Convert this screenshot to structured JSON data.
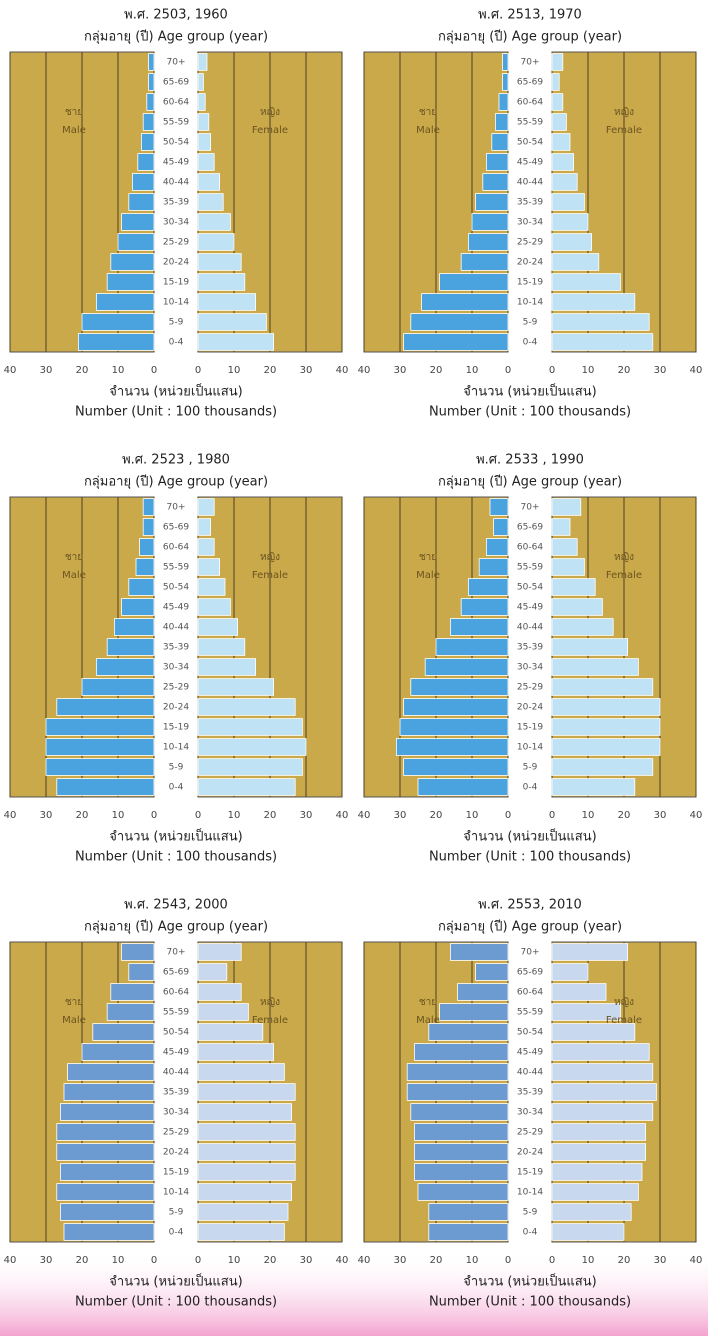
{
  "chart_data": [
    {
      "type": "pyramid",
      "title": "พ.ศ. 2503, 1960",
      "subtitle": "กลุ่มอายุ (ปี) Age group (year)",
      "x_label": "จำนวน (หน่วยเป็นแสน)",
      "x_label_en": "Number (Unit : 100 thousands)",
      "categories": [
        "0-4",
        "5-9",
        "10-14",
        "15-19",
        "20-24",
        "25-29",
        "30-34",
        "35-39",
        "40-44",
        "45-49",
        "50-54",
        "55-59",
        "60-64",
        "65-69",
        "70+"
      ],
      "xlim": [
        0,
        40
      ],
      "xticks": [
        0,
        10,
        20,
        30,
        40
      ],
      "grid": true,
      "series": [
        {
          "name": "Male",
          "name_th": "ชาย",
          "color": "#4aa3df",
          "values": [
            21,
            20,
            16,
            13,
            12,
            10,
            9,
            7,
            6,
            4.5,
            3.5,
            3,
            2,
            1.5,
            1.5
          ]
        },
        {
          "name": "Female",
          "name_th": "หญิง",
          "color": "#bfe3f5",
          "values": [
            21,
            19,
            16,
            13,
            12,
            10,
            9,
            7,
            6,
            4.5,
            3.5,
            3,
            2,
            1.5,
            2.5
          ]
        }
      ]
    },
    {
      "type": "pyramid",
      "title": "พ.ศ. 2513, 1970",
      "subtitle": "กลุ่มอายุ (ปี) Age group (year)",
      "x_label": "จำนวน (หน่วยเป็นแสน)",
      "x_label_en": "Number (Unit : 100 thousands)",
      "categories": [
        "0-4",
        "5-9",
        "10-14",
        "15-19",
        "20-24",
        "25-29",
        "30-34",
        "35-39",
        "40-44",
        "45-49",
        "50-54",
        "55-59",
        "60-64",
        "65-69",
        "70+"
      ],
      "xlim": [
        0,
        40
      ],
      "xticks": [
        0,
        10,
        20,
        30,
        40
      ],
      "grid": true,
      "series": [
        {
          "name": "Male",
          "name_th": "ชาย",
          "color": "#4aa3df",
          "values": [
            29,
            27,
            24,
            19,
            13,
            11,
            10,
            9,
            7,
            6,
            4.5,
            3.5,
            2.5,
            1.5,
            1.5
          ]
        },
        {
          "name": "Female",
          "name_th": "หญิง",
          "color": "#bfe3f5",
          "values": [
            28,
            27,
            23,
            19,
            13,
            11,
            10,
            9,
            7,
            6,
            5,
            4,
            3,
            2,
            3
          ]
        }
      ]
    },
    {
      "type": "pyramid",
      "title": "พ.ศ. 2523 , 1980",
      "subtitle": "กลุ่มอายุ (ปี) Age group (year)",
      "x_label": "จำนวน (หน่วยเป็นแสน)",
      "x_label_en": "Number (Unit : 100 thousands)",
      "categories": [
        "0-4",
        "5-9",
        "10-14",
        "15-19",
        "20-24",
        "25-29",
        "30-34",
        "35-39",
        "40-44",
        "45-49",
        "50-54",
        "55-59",
        "60-64",
        "65-69",
        "70+"
      ],
      "xlim": [
        0,
        40
      ],
      "xticks": [
        0,
        10,
        20,
        30,
        40
      ],
      "grid": true,
      "series": [
        {
          "name": "Male",
          "name_th": "ชาย",
          "color": "#4aa3df",
          "values": [
            27,
            30,
            30,
            30,
            27,
            20,
            16,
            13,
            11,
            9,
            7,
            5,
            4,
            3,
            3
          ]
        },
        {
          "name": "Female",
          "name_th": "หญิง",
          "color": "#bfe3f5",
          "values": [
            27,
            29,
            30,
            29,
            27,
            21,
            16,
            13,
            11,
            9,
            7.5,
            6,
            4.5,
            3.5,
            4.5
          ]
        }
      ]
    },
    {
      "type": "pyramid",
      "title": "พ.ศ. 2533 , 1990",
      "subtitle": "กลุ่มอายุ (ปี) Age group (year)",
      "x_label": "จำนวน (หน่วยเป็นแสน)",
      "x_label_en": "Number (Unit : 100 thousands)",
      "categories": [
        "0-4",
        "5-9",
        "10-14",
        "15-19",
        "20-24",
        "25-29",
        "30-34",
        "35-39",
        "40-44",
        "45-49",
        "50-54",
        "55-59",
        "60-64",
        "65-69",
        "70+"
      ],
      "xlim": [
        0,
        40
      ],
      "xticks": [
        0,
        10,
        20,
        30,
        40
      ],
      "grid": true,
      "series": [
        {
          "name": "Male",
          "name_th": "ชาย",
          "color": "#4aa3df",
          "values": [
            25,
            29,
            31,
            30,
            29,
            27,
            23,
            20,
            16,
            13,
            11,
            8,
            6,
            4,
            5
          ]
        },
        {
          "name": "Female",
          "name_th": "หญิง",
          "color": "#bfe3f5",
          "values": [
            23,
            28,
            30,
            30,
            30,
            28,
            24,
            21,
            17,
            14,
            12,
            9,
            7,
            5,
            8
          ]
        }
      ]
    },
    {
      "type": "pyramid",
      "title": "พ.ศ. 2543, 2000",
      "subtitle": "กลุ่มอายุ (ปี) Age group (year)",
      "x_label": "จำนวน (หน่วยเป็นแสน)",
      "x_label_en": "Number (Unit : 100 thousands)",
      "categories": [
        "0-4",
        "5-9",
        "10-14",
        "15-19",
        "20-24",
        "25-29",
        "30-34",
        "35-39",
        "40-44",
        "45-49",
        "50-54",
        "55-59",
        "60-64",
        "65-69",
        "70+"
      ],
      "xlim": [
        0,
        40
      ],
      "xticks": [
        0,
        10,
        20,
        30,
        40
      ],
      "grid": true,
      "series": [
        {
          "name": "Male",
          "name_th": "ชาย",
          "color": "#6b9bd1",
          "values": [
            25,
            26,
            27,
            26,
            27,
            27,
            26,
            25,
            24,
            20,
            17,
            13,
            12,
            7,
            9
          ]
        },
        {
          "name": "Female",
          "name_th": "หญิง",
          "color": "#c8d8ee",
          "values": [
            24,
            25,
            26,
            27,
            27,
            27,
            26,
            27,
            24,
            21,
            18,
            14,
            12,
            8,
            12
          ]
        }
      ]
    },
    {
      "type": "pyramid",
      "title": "พ.ศ. 2553, 2010",
      "subtitle": "กลุ่มอายุ (ปี) Age group (year)",
      "x_label": "จำนวน (หน่วยเป็นแสน)",
      "x_label_en": "Number (Unit : 100 thousands)",
      "categories": [
        "0-4",
        "5-9",
        "10-14",
        "15-19",
        "20-24",
        "25-29",
        "30-34",
        "35-39",
        "40-44",
        "45-49",
        "50-54",
        "55-59",
        "60-64",
        "65-69",
        "70+"
      ],
      "xlim": [
        0,
        40
      ],
      "xticks": [
        0,
        10,
        20,
        30,
        40
      ],
      "grid": true,
      "series": [
        {
          "name": "Male",
          "name_th": "ชาย",
          "color": "#6b9bd1",
          "values": [
            22,
            22,
            25,
            26,
            26,
            26,
            27,
            28,
            28,
            26,
            22,
            19,
            14,
            9,
            16
          ]
        },
        {
          "name": "Female",
          "name_th": "หญิง",
          "color": "#c8d8ee",
          "values": [
            20,
            22,
            24,
            25,
            26,
            26,
            28,
            29,
            28,
            27,
            23,
            19,
            15,
            10,
            21
          ]
        }
      ]
    }
  ]
}
